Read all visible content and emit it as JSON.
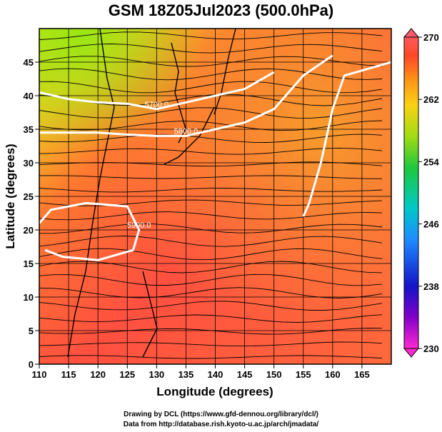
{
  "title": "GSM 18Z05Jul2023 (500.0hPa)",
  "xlabel": "Longitude (degrees)",
  "ylabel": "Latitude  (degrees)",
  "footer": {
    "line1": "Drawing by DCL (https://www.gfd-dennou.org/library/dcl/)",
    "line2": "Data from http://database.rish.kyoto-u.ac.jp/arch/jmadata/"
  },
  "colorbar": {
    "min": 230,
    "max": 270,
    "tick_labels": [
      "270",
      "262",
      "254",
      "246",
      "238",
      "230"
    ],
    "colors": [
      "#e030d0",
      "#5a00b0",
      "#1a1ad0",
      "#1e90ff",
      "#00c8c8",
      "#1ec850",
      "#8cdc14",
      "#f0e614",
      "#ffb400",
      "#ff7828",
      "#ff3c3c",
      "#ff5a78"
    ]
  },
  "chart_data": {
    "type": "heatmap",
    "title": "GSM 18Z05Jul2023 (500.0hPa)",
    "xlabel": "Longitude (degrees)",
    "ylabel": "Latitude  (degrees)",
    "xlim": [
      110,
      170
    ],
    "ylim": [
      0,
      50
    ],
    "x_ticks": [
      110,
      115,
      120,
      125,
      130,
      135,
      140,
      145,
      150,
      155,
      160,
      165
    ],
    "y_ticks": [
      0,
      5,
      10,
      15,
      20,
      25,
      30,
      35,
      40,
      45
    ],
    "contours": [
      {
        "label": "5700.0",
        "points": [
          [
            110,
            40.5
          ],
          [
            115,
            39.5
          ],
          [
            120,
            39
          ],
          [
            125,
            38.8
          ],
          [
            130,
            38
          ],
          [
            135,
            39
          ],
          [
            140,
            40
          ],
          [
            145,
            41
          ],
          [
            150,
            43.5
          ]
        ]
      },
      {
        "label": "5800.0",
        "points": [
          [
            110,
            34.5
          ],
          [
            115,
            34.5
          ],
          [
            120,
            34.5
          ],
          [
            125,
            34.2
          ],
          [
            130,
            34
          ],
          [
            135,
            34
          ],
          [
            140,
            35
          ],
          [
            145,
            36
          ],
          [
            150,
            38
          ],
          [
            155,
            43
          ],
          [
            160,
            46
          ]
        ]
      },
      {
        "label": "5900.0",
        "points": [
          [
            111,
            17
          ],
          [
            114,
            16
          ],
          [
            120,
            15.5
          ],
          [
            126,
            17
          ],
          [
            127,
            20
          ],
          [
            125,
            23.5
          ],
          [
            118,
            24
          ],
          [
            112,
            23
          ],
          [
            110,
            21
          ]
        ]
      },
      {
        "label": "",
        "points": [
          [
            155,
            22
          ],
          [
            156,
            24
          ],
          [
            158,
            30
          ],
          [
            160,
            38
          ],
          [
            162,
            43
          ],
          [
            166,
            44
          ],
          [
            170,
            45
          ]
        ]
      }
    ],
    "colorbar": {
      "range": [
        230,
        270
      ],
      "ticks": [
        230,
        238,
        246,
        254,
        262,
        270
      ]
    }
  }
}
